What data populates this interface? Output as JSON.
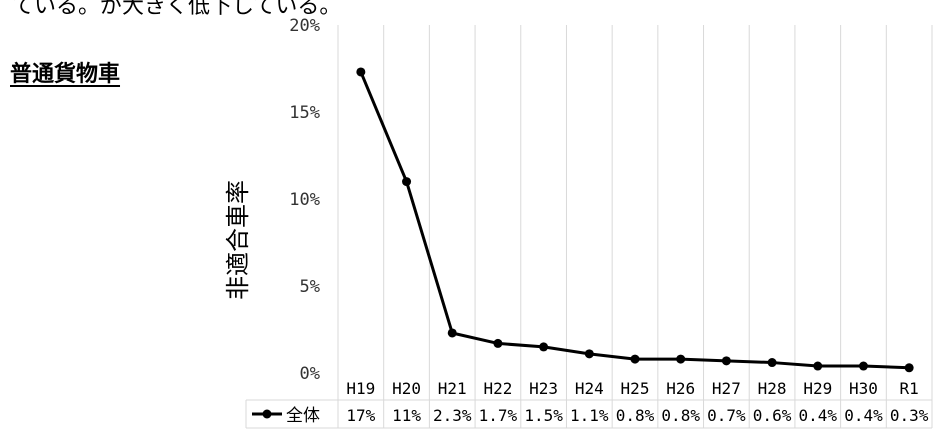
{
  "page": {
    "top_text": "ている。が大きく低下している。",
    "section_title": "普通貨物車"
  },
  "chart_data": {
    "type": "line",
    "categories": [
      "H19",
      "H20",
      "H21",
      "H22",
      "H23",
      "H24",
      "H25",
      "H26",
      "H27",
      "H28",
      "H29",
      "H30",
      "R1"
    ],
    "series": [
      {
        "name": "全体",
        "values": [
          17.3,
          11.0,
          2.3,
          1.7,
          1.5,
          1.1,
          0.8,
          0.8,
          0.7,
          0.6,
          0.4,
          0.4,
          0.3
        ],
        "labels": [
          "17%",
          "11%",
          "2.3%",
          "1.7%",
          "1.5%",
          "1.1%",
          "0.8%",
          "0.8%",
          "0.7%",
          "0.6%",
          "0.4%",
          "0.4%",
          "0.3%"
        ],
        "color": "#000000"
      }
    ],
    "ylabel": "非適合車率",
    "ylim": [
      0,
      20
    ],
    "yticks": [
      0,
      5,
      10,
      15,
      20
    ],
    "ytick_labels": [
      "0%",
      "5%",
      "10%",
      "15%",
      "20%"
    ],
    "grid": "vertical",
    "grid_color": "#d9d9d9",
    "legend": "data-table"
  }
}
